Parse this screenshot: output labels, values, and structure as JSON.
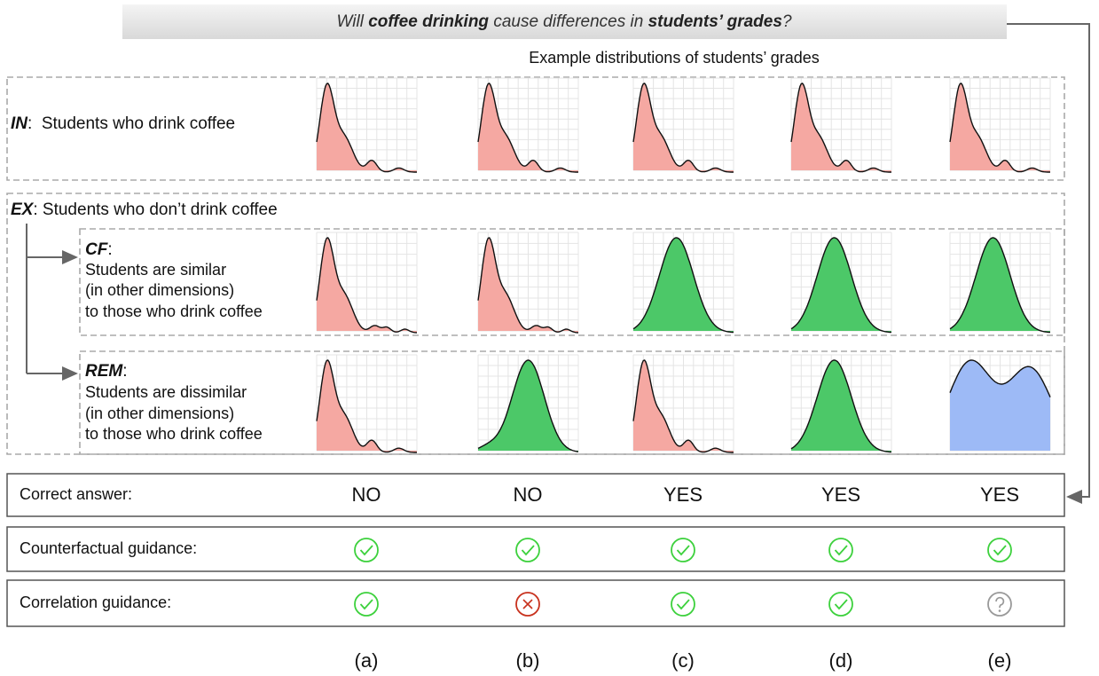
{
  "question": {
    "parts": [
      "Will ",
      "coffee drinking",
      " cause differences in ",
      "students’ grades",
      "?"
    ]
  },
  "distributions_title": "Example distributions of students’ grades",
  "groups": {
    "in": {
      "key": "IN",
      "text": ":  Students who drink coffee"
    },
    "ex": {
      "key": "EX",
      "text": ": Students who don’t drink coffee"
    },
    "cf": {
      "key": "CF",
      "suffix": ":",
      "lines": [
        "Students are similar",
        "(in other dimensions)",
        "to those who drink coffee"
      ]
    },
    "rem": {
      "key": "REM",
      "suffix": ":",
      "lines": [
        "Students are dissimilar",
        "(in other dimensions)",
        "to those who drink coffee"
      ]
    }
  },
  "table": {
    "rows": [
      {
        "label": "Correct answer:",
        "values": [
          "NO",
          "NO",
          "YES",
          "YES",
          "YES"
        ]
      },
      {
        "label": "Counterfactual guidance:"
      },
      {
        "label": "Correlation guidance:"
      }
    ]
  },
  "columns": [
    "(a)",
    "(b)",
    "(c)",
    "(d)",
    "(e)"
  ]
}
